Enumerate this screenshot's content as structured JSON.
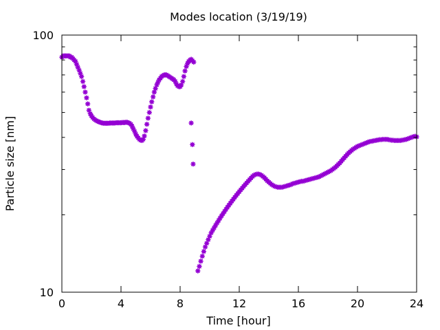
{
  "chart_data": {
    "type": "scatter",
    "title": "Modes location (3/19/19)",
    "xlabel": "Time [hour]",
    "ylabel": "Particle size [nm]",
    "xlim": [
      0,
      24
    ],
    "ylim": [
      10,
      100
    ],
    "y_scale": "log",
    "x_ticks": [
      0,
      4,
      8,
      12,
      16,
      20,
      24
    ],
    "x_tick_labels": [
      "0",
      "4",
      "8",
      "12",
      "16",
      "20",
      "24"
    ],
    "y_ticks": [
      10,
      100
    ],
    "y_tick_labels": [
      "10",
      "100"
    ],
    "grid": false,
    "marker": "asterisk",
    "color": "#9400d3",
    "series": [
      {
        "points": [
          [
            0.0,
            82
          ],
          [
            0.08,
            83
          ],
          [
            0.17,
            83
          ],
          [
            0.25,
            83
          ],
          [
            0.33,
            83
          ],
          [
            0.42,
            83
          ],
          [
            0.5,
            83
          ],
          [
            0.58,
            82
          ],
          [
            0.67,
            82
          ],
          [
            0.75,
            81
          ],
          [
            0.83,
            80
          ],
          [
            0.92,
            79
          ],
          [
            1.0,
            77
          ],
          [
            1.08,
            75
          ],
          [
            1.17,
            73
          ],
          [
            1.25,
            71
          ],
          [
            1.33,
            69
          ],
          [
            1.42,
            66
          ],
          [
            1.5,
            63
          ],
          [
            1.58,
            60
          ],
          [
            1.67,
            57
          ],
          [
            1.75,
            54
          ],
          [
            1.83,
            51
          ],
          [
            1.92,
            49.5
          ],
          [
            2.0,
            48.5
          ],
          [
            2.08,
            47.8
          ],
          [
            2.17,
            47.2
          ],
          [
            2.25,
            46.8
          ],
          [
            2.33,
            46.5
          ],
          [
            2.42,
            46.2
          ],
          [
            2.5,
            46.0
          ],
          [
            2.58,
            45.8
          ],
          [
            2.67,
            45.6
          ],
          [
            2.75,
            45.5
          ],
          [
            2.83,
            45.4
          ],
          [
            2.92,
            45.4
          ],
          [
            3.0,
            45.4
          ],
          [
            3.08,
            45.4
          ],
          [
            3.17,
            45.4
          ],
          [
            3.25,
            45.5
          ],
          [
            3.33,
            45.5
          ],
          [
            3.42,
            45.5
          ],
          [
            3.5,
            45.5
          ],
          [
            3.58,
            45.5
          ],
          [
            3.67,
            45.6
          ],
          [
            3.75,
            45.6
          ],
          [
            3.83,
            45.6
          ],
          [
            3.92,
            45.6
          ],
          [
            4.0,
            45.6
          ],
          [
            4.08,
            45.7
          ],
          [
            4.17,
            45.7
          ],
          [
            4.25,
            45.7
          ],
          [
            4.33,
            45.8
          ],
          [
            4.42,
            45.8
          ],
          [
            4.5,
            45.6
          ],
          [
            4.58,
            45.4
          ],
          [
            4.67,
            45.0
          ],
          [
            4.75,
            44.2
          ],
          [
            4.83,
            43.2
          ],
          [
            4.92,
            42.2
          ],
          [
            5.0,
            41.2
          ],
          [
            5.08,
            40.4
          ],
          [
            5.17,
            39.8
          ],
          [
            5.25,
            39.3
          ],
          [
            5.33,
            39.0
          ],
          [
            5.42,
            38.9
          ],
          [
            5.5,
            39.3
          ],
          [
            5.58,
            40.5
          ],
          [
            5.67,
            42.5
          ],
          [
            5.75,
            45.0
          ],
          [
            5.83,
            47.5
          ],
          [
            5.92,
            50.0
          ],
          [
            6.0,
            52.5
          ],
          [
            6.08,
            55.0
          ],
          [
            6.17,
            57.5
          ],
          [
            6.25,
            60.0
          ],
          [
            6.33,
            62.0
          ],
          [
            6.42,
            64.0
          ],
          [
            6.5,
            65.5
          ],
          [
            6.58,
            67.0
          ],
          [
            6.67,
            68.0
          ],
          [
            6.75,
            69.0
          ],
          [
            6.83,
            69.5
          ],
          [
            6.92,
            70.0
          ],
          [
            7.0,
            70.0
          ],
          [
            7.08,
            70.0
          ],
          [
            7.17,
            69.5
          ],
          [
            7.25,
            69.0
          ],
          [
            7.33,
            68.5
          ],
          [
            7.42,
            68.0
          ],
          [
            7.5,
            67.5
          ],
          [
            7.58,
            67.0
          ],
          [
            7.67,
            66.0
          ],
          [
            7.75,
            64.5
          ],
          [
            7.83,
            63.5
          ],
          [
            7.92,
            63.0
          ],
          [
            8.0,
            63.0
          ],
          [
            8.08,
            64.0
          ],
          [
            8.17,
            66.0
          ],
          [
            8.25,
            69.0
          ],
          [
            8.33,
            72.5
          ],
          [
            8.42,
            75.5
          ],
          [
            8.5,
            77.5
          ],
          [
            8.58,
            79.0
          ],
          [
            8.67,
            80.0
          ],
          [
            8.75,
            80.5
          ],
          [
            8.83,
            79.5
          ],
          [
            8.92,
            78.5
          ],
          [
            8.75,
            45.5
          ],
          [
            8.83,
            37.5
          ],
          [
            8.88,
            31.5
          ],
          [
            9.2,
            12.1
          ],
          [
            9.3,
            12.6
          ],
          [
            9.4,
            13.2
          ],
          [
            9.5,
            13.8
          ],
          [
            9.6,
            14.4
          ],
          [
            9.7,
            15.0
          ],
          [
            9.8,
            15.5
          ],
          [
            9.9,
            16.0
          ],
          [
            10.0,
            16.5
          ],
          [
            10.1,
            17.0
          ],
          [
            10.2,
            17.4
          ],
          [
            10.3,
            17.8
          ],
          [
            10.4,
            18.2
          ],
          [
            10.5,
            18.6
          ],
          [
            10.6,
            19.0
          ],
          [
            10.7,
            19.4
          ],
          [
            10.8,
            19.8
          ],
          [
            10.9,
            20.2
          ],
          [
            11.0,
            20.6
          ],
          [
            11.1,
            21.0
          ],
          [
            11.2,
            21.4
          ],
          [
            11.3,
            21.8
          ],
          [
            11.4,
            22.2
          ],
          [
            11.5,
            22.6
          ],
          [
            11.6,
            23.0
          ],
          [
            11.7,
            23.4
          ],
          [
            11.8,
            23.8
          ],
          [
            11.9,
            24.2
          ],
          [
            12.0,
            24.6
          ],
          [
            12.1,
            25.0
          ],
          [
            12.2,
            25.4
          ],
          [
            12.3,
            25.8
          ],
          [
            12.4,
            26.2
          ],
          [
            12.5,
            26.6
          ],
          [
            12.6,
            27.0
          ],
          [
            12.7,
            27.4
          ],
          [
            12.8,
            27.8
          ],
          [
            12.9,
            28.2
          ],
          [
            13.0,
            28.5
          ],
          [
            13.1,
            28.7
          ],
          [
            13.2,
            28.8
          ],
          [
            13.3,
            28.8
          ],
          [
            13.4,
            28.7
          ],
          [
            13.5,
            28.5
          ],
          [
            13.6,
            28.2
          ],
          [
            13.7,
            27.9
          ],
          [
            13.8,
            27.5
          ],
          [
            13.9,
            27.1
          ],
          [
            14.0,
            26.8
          ],
          [
            14.1,
            26.5
          ],
          [
            14.2,
            26.2
          ],
          [
            14.3,
            26.0
          ],
          [
            14.4,
            25.8
          ],
          [
            14.5,
            25.7
          ],
          [
            14.6,
            25.6
          ],
          [
            14.7,
            25.6
          ],
          [
            14.8,
            25.6
          ],
          [
            14.9,
            25.6
          ],
          [
            15.0,
            25.7
          ],
          [
            15.1,
            25.8
          ],
          [
            15.2,
            25.9
          ],
          [
            15.3,
            26.0
          ],
          [
            15.4,
            26.1
          ],
          [
            15.5,
            26.2
          ],
          [
            15.6,
            26.4
          ],
          [
            15.7,
            26.5
          ],
          [
            15.8,
            26.6
          ],
          [
            15.9,
            26.7
          ],
          [
            16.0,
            26.8
          ],
          [
            16.1,
            26.9
          ],
          [
            16.2,
            27.0
          ],
          [
            16.3,
            27.0
          ],
          [
            16.4,
            27.1
          ],
          [
            16.5,
            27.2
          ],
          [
            16.6,
            27.3
          ],
          [
            16.7,
            27.4
          ],
          [
            16.8,
            27.5
          ],
          [
            16.9,
            27.6
          ],
          [
            17.0,
            27.7
          ],
          [
            17.1,
            27.8
          ],
          [
            17.2,
            27.9
          ],
          [
            17.3,
            28.0
          ],
          [
            17.4,
            28.1
          ],
          [
            17.5,
            28.3
          ],
          [
            17.6,
            28.5
          ],
          [
            17.7,
            28.7
          ],
          [
            17.8,
            28.9
          ],
          [
            17.9,
            29.1
          ],
          [
            18.0,
            29.3
          ],
          [
            18.1,
            29.5
          ],
          [
            18.2,
            29.7
          ],
          [
            18.3,
            30.0
          ],
          [
            18.4,
            30.3
          ],
          [
            18.5,
            30.6
          ],
          [
            18.6,
            31.0
          ],
          [
            18.7,
            31.4
          ],
          [
            18.8,
            31.8
          ],
          [
            18.9,
            32.3
          ],
          [
            19.0,
            32.8
          ],
          [
            19.1,
            33.3
          ],
          [
            19.2,
            33.8
          ],
          [
            19.3,
            34.3
          ],
          [
            19.4,
            34.8
          ],
          [
            19.5,
            35.2
          ],
          [
            19.6,
            35.6
          ],
          [
            19.7,
            36.0
          ],
          [
            19.8,
            36.3
          ],
          [
            19.9,
            36.6
          ],
          [
            20.0,
            36.9
          ],
          [
            20.1,
            37.1
          ],
          [
            20.2,
            37.3
          ],
          [
            20.3,
            37.5
          ],
          [
            20.4,
            37.7
          ],
          [
            20.5,
            37.9
          ],
          [
            20.6,
            38.1
          ],
          [
            20.7,
            38.3
          ],
          [
            20.8,
            38.5
          ],
          [
            20.9,
            38.6
          ],
          [
            21.0,
            38.7
          ],
          [
            21.1,
            38.8
          ],
          [
            21.2,
            38.9
          ],
          [
            21.3,
            39.0
          ],
          [
            21.4,
            39.1
          ],
          [
            21.5,
            39.2
          ],
          [
            21.6,
            39.2
          ],
          [
            21.7,
            39.3
          ],
          [
            21.8,
            39.3
          ],
          [
            21.9,
            39.3
          ],
          [
            22.0,
            39.3
          ],
          [
            22.1,
            39.2
          ],
          [
            22.2,
            39.1
          ],
          [
            22.3,
            39.0
          ],
          [
            22.4,
            39.0
          ],
          [
            22.5,
            38.9
          ],
          [
            22.6,
            38.9
          ],
          [
            22.7,
            38.9
          ],
          [
            22.8,
            38.9
          ],
          [
            22.9,
            38.9
          ],
          [
            23.0,
            39.0
          ],
          [
            23.1,
            39.1
          ],
          [
            23.2,
            39.2
          ],
          [
            23.3,
            39.3
          ],
          [
            23.4,
            39.5
          ],
          [
            23.5,
            39.7
          ],
          [
            23.6,
            39.9
          ],
          [
            23.7,
            40.1
          ],
          [
            23.8,
            40.3
          ],
          [
            23.9,
            40.4
          ],
          [
            24.0,
            40.2
          ]
        ]
      }
    ]
  }
}
